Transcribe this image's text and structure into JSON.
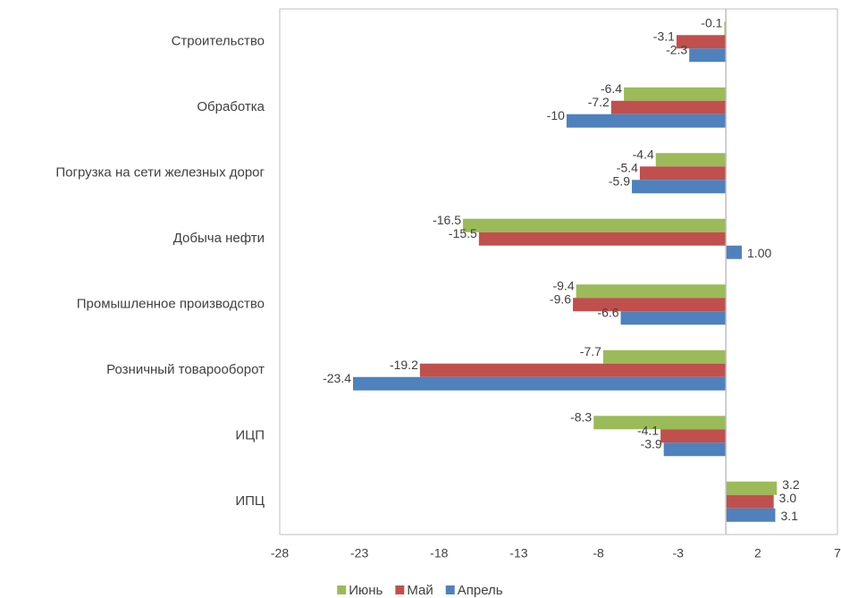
{
  "chart_data": {
    "type": "bar",
    "orientation": "horizontal",
    "categories": [
      "Строительство",
      "Обработка",
      "Погрузка на сети железных дорог",
      "Добыча нефти",
      "Промышленное производство",
      "Розничный товарооборот",
      "ИЦП",
      "ИПЦ"
    ],
    "series": [
      {
        "name": "Июнь",
        "color": "#9bbb59",
        "values": [
          -0.1,
          -6.4,
          -4.4,
          -16.5,
          -9.4,
          -7.7,
          -8.3,
          3.2
        ]
      },
      {
        "name": "Май",
        "color": "#c0504d",
        "values": [
          -3.1,
          -7.2,
          -5.4,
          -15.5,
          -9.6,
          -19.2,
          -4.1,
          3.0
        ],
        "value_labels": [
          "-3.1",
          "-7.2",
          "-5.4",
          "-15.5",
          "-9.6",
          "-19.2",
          "-4.1",
          "3.0"
        ]
      },
      {
        "name": "Апрель",
        "color": "#4f81bd",
        "values": [
          -2.3,
          -10,
          -5.9,
          1.0,
          -6.6,
          -23.4,
          -3.9,
          3.1
        ],
        "value_labels": [
          "-2.3",
          "-10",
          "-5.9",
          "1.00",
          "-6.6",
          "-23.4",
          "-3.9",
          "3.1"
        ]
      }
    ],
    "xlim": [
      -28,
      7
    ],
    "xticks": [
      -28,
      -23,
      -18,
      -13,
      -8,
      -3,
      2,
      7
    ],
    "grid": false,
    "legend": "bottom"
  }
}
